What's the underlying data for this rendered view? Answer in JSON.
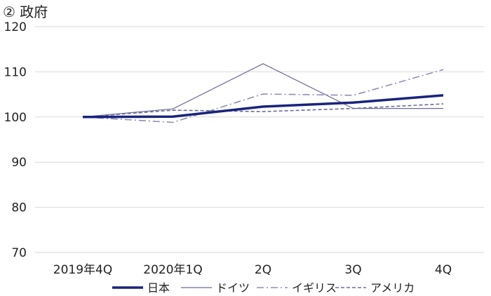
{
  "title": "② 政府",
  "chart_data": {
    "type": "line",
    "categories": [
      "2019年4Q",
      "2020年1Q",
      "2Q",
      "3Q",
      "4Q"
    ],
    "ylim": [
      70,
      120
    ],
    "yticks": [
      70,
      80,
      90,
      100,
      110,
      120
    ],
    "grid": true,
    "legend_position": "bottom",
    "series": [
      {
        "name": "日本",
        "values": [
          100.0,
          100.1,
          102.3,
          103.2,
          104.8
        ],
        "color": "#1a237e",
        "style": "solid-thick"
      },
      {
        "name": "ドイツ",
        "values": [
          100.0,
          101.8,
          111.8,
          101.9,
          101.9
        ],
        "color": "#6b6b9a",
        "style": "solid-thin"
      },
      {
        "name": "イギリス",
        "values": [
          100.0,
          98.8,
          105.1,
          104.8,
          110.5
        ],
        "color": "#8e8eb0",
        "style": "dashdot"
      },
      {
        "name": "アメリカ",
        "values": [
          100.0,
          101.5,
          101.2,
          101.9,
          102.9
        ],
        "color": "#6b6b9a",
        "style": "dashed"
      }
    ]
  }
}
